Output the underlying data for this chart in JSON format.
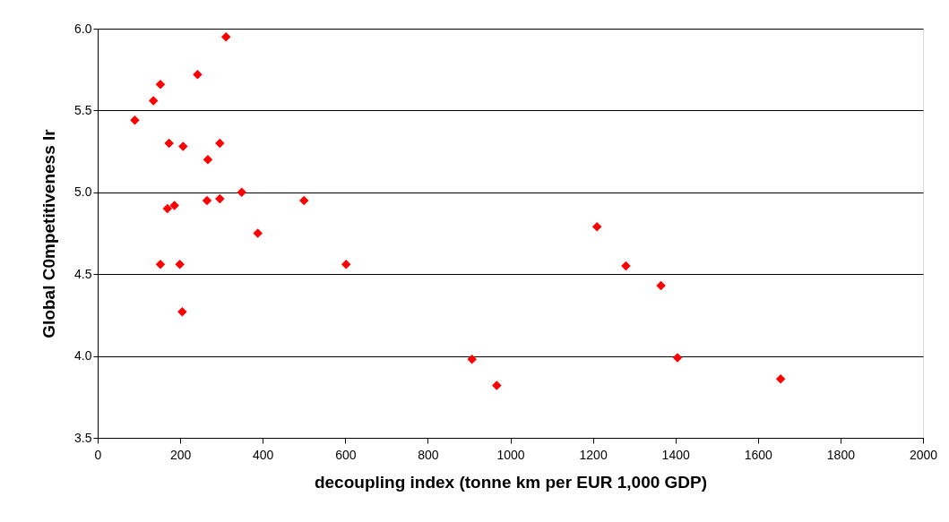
{
  "chart_data": {
    "type": "scatter",
    "xlabel": "decoupling index (tonne km per EUR 1,000 GDP)",
    "ylabel": "Global C0mpetitiveness Ir",
    "x": [
      311,
      242,
      152,
      135,
      90,
      173,
      207,
      296,
      267,
      169,
      186,
      265,
      296,
      349,
      500,
      388,
      152,
      199,
      602,
      205,
      907,
      967,
      1210,
      1280,
      1365,
      1405,
      1655
    ],
    "series": [
      {
        "color": "#ff0000",
        "values": [
          5.95,
          5.72,
          5.66,
          5.56,
          5.44,
          5.3,
          5.28,
          5.3,
          5.2,
          4.9,
          4.92,
          4.95,
          4.96,
          5.0,
          4.95,
          4.75,
          4.56,
          4.56,
          4.56,
          4.27,
          3.98,
          3.82,
          4.79,
          4.55,
          4.43,
          3.99,
          3.86
        ]
      }
    ],
    "xlim": [
      0,
      2000
    ],
    "xticks": [
      0,
      200,
      400,
      600,
      800,
      1000,
      1200,
      1400,
      1600,
      1800,
      2000
    ],
    "ylim": [
      3.5,
      6.0
    ],
    "yticks": [
      {
        "value": 3.5,
        "label": "3.5"
      },
      {
        "value": 4.0,
        "label": "4.0"
      },
      {
        "value": 4.5,
        "label": "4.5"
      },
      {
        "value": 5.0,
        "label": "5.0"
      },
      {
        "value": 5.5,
        "label": "5.5"
      },
      {
        "value": 6.0,
        "label": "6.0"
      }
    ],
    "grid": "y",
    "marker": "diamond"
  }
}
